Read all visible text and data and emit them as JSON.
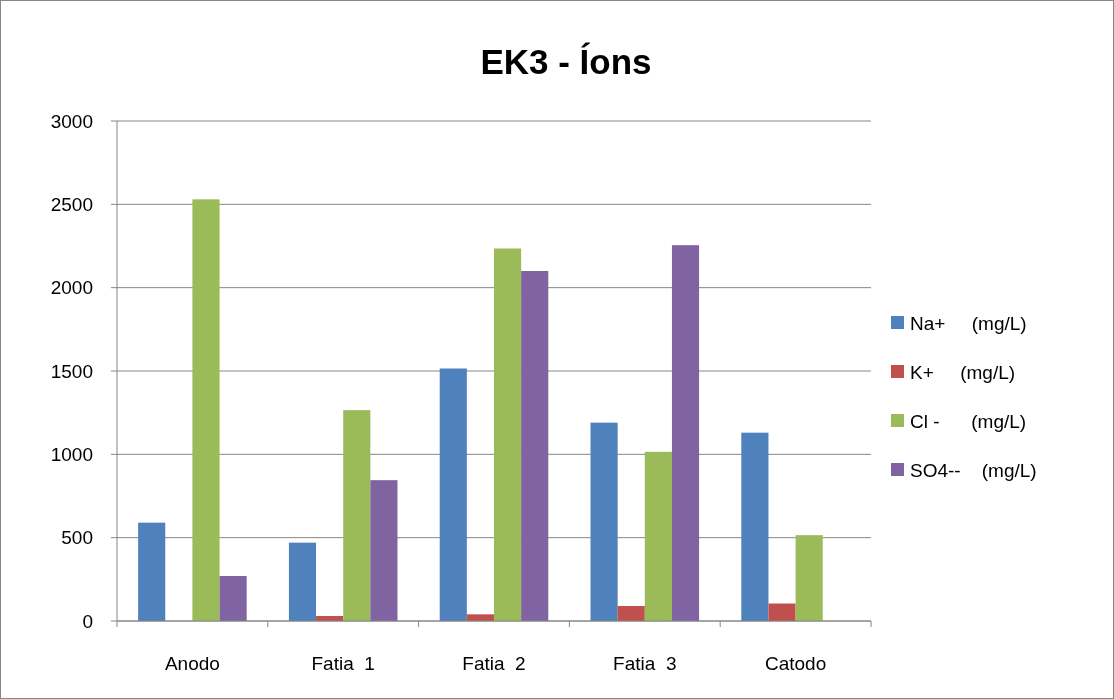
{
  "chart_data": {
    "type": "bar",
    "title": "EK3 - Íons",
    "categories": [
      "Anodo",
      "Fatia  1",
      "Fatia  2",
      "Fatia  3",
      "Catodo"
    ],
    "series": [
      {
        "name": "Na+     (mg/L)",
        "color": "#4f81bd",
        "values": [
          590,
          470,
          1515,
          1190,
          1130
        ]
      },
      {
        "name": "K+     (mg/L)",
        "color": "#c0504d",
        "values": [
          null,
          30,
          40,
          90,
          105
        ]
      },
      {
        "name": "Cl -      (mg/L)",
        "color": "#9bbb59",
        "values": [
          2530,
          1265,
          2235,
          1015,
          515
        ]
      },
      {
        "name": "SO4--    (mg/L)",
        "color": "#8064a2",
        "values": [
          270,
          845,
          2100,
          2255,
          null
        ]
      }
    ],
    "ylim": [
      0,
      3000
    ],
    "yticks": [
      0,
      500,
      1000,
      1500,
      2000,
      2500,
      3000
    ],
    "grid": "y",
    "legend": "right"
  }
}
